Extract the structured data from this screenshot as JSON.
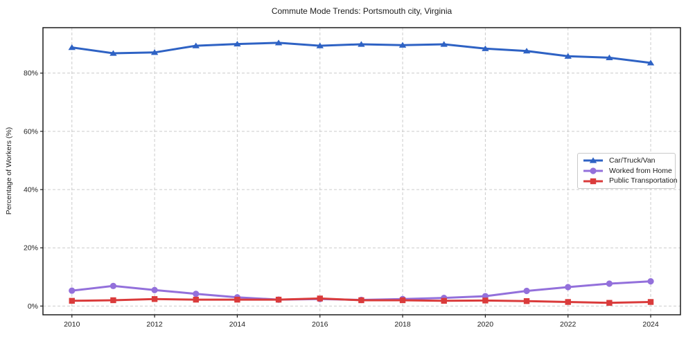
{
  "chart_data": {
    "type": "line",
    "title": "Commute Mode Trends: Portsmouth city, Virginia",
    "xlabel": "",
    "ylabel": "Percentage of Workers (%)",
    "x": [
      2010,
      2011,
      2012,
      2013,
      2014,
      2015,
      2016,
      2017,
      2018,
      2019,
      2020,
      2021,
      2022,
      2023,
      2024
    ],
    "x_ticks": [
      2010,
      2012,
      2014,
      2016,
      2018,
      2020,
      2022,
      2024
    ],
    "y_ticks": [
      0,
      20,
      40,
      60,
      80
    ],
    "y_tick_suffix": "%",
    "xlim": [
      2009.3,
      2024.72
    ],
    "ylim": [
      -3.0,
      95.6
    ],
    "grid": true,
    "legend_position": "center-right",
    "series": [
      {
        "name": "Car/Truck/Van",
        "color": "#2e62c4",
        "marker": "triangle",
        "values": [
          88.8,
          86.8,
          87.1,
          89.4,
          90.0,
          90.4,
          89.4,
          89.9,
          89.6,
          89.9,
          88.4,
          87.6,
          85.8,
          85.3,
          83.5
        ]
      },
      {
        "name": "Worked from Home",
        "color": "#9370db",
        "marker": "circle",
        "values": [
          5.3,
          6.9,
          5.5,
          4.2,
          3.0,
          2.2,
          2.4,
          2.1,
          2.4,
          2.8,
          3.4,
          5.2,
          6.5,
          7.7,
          8.5
        ]
      },
      {
        "name": "Public Transportation",
        "color": "#da3b3b",
        "marker": "square",
        "values": [
          1.8,
          2.0,
          2.4,
          2.2,
          2.2,
          2.2,
          2.6,
          2.0,
          2.0,
          1.8,
          1.9,
          1.7,
          1.4,
          1.1,
          1.4
        ]
      }
    ]
  }
}
